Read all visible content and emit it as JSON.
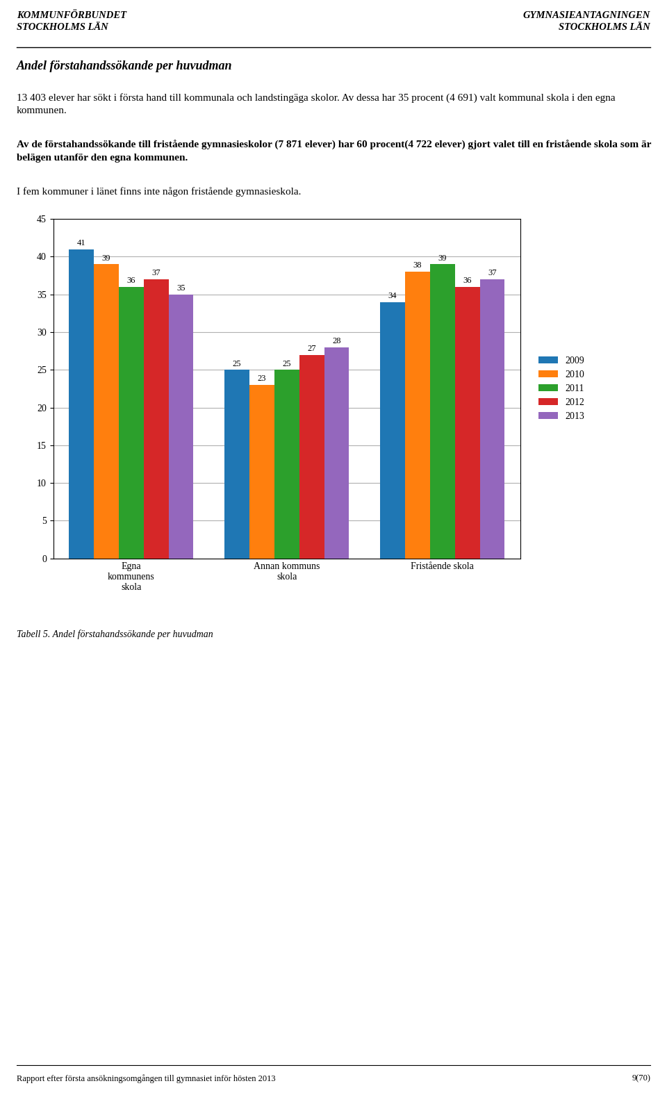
{
  "chart_data": {
    "type": "bar",
    "title": "Andel förstahandssökande per huvudman",
    "annotations": [
      "KOMMUNFÖRBUNDET\nSTOCKHOLMS LÄN",
      "GYMNASIEANTAGNINGEN\nSTOCKHOLMS LÄN",
      "13 403 elever har sökt i första hand till kommunala och landstingäga skolor. Av dessa har 35 procent (4 691) valt kommunal skola i den egna kommunen.",
      "Av de förstahandssökande till fristående gymnasieskolor (7 871 elever) har 60 procent(4 722 elever) gjort valet till en fristående skola som är belägen utanför den egna kommunen.",
      "I fem kommuner i länet finns inte någon fristående gymnasieskola.",
      "Tabell 5. Andel förstahandssökande per huvudman",
      "Rapport efter första ansökningsomgången till gymnasiet inför hösten 2013",
      "9(70)"
    ],
    "categories": [
      "Egna\nkommunens\nskola",
      "Annan kommuns\nskola",
      "Fristående skola"
    ],
    "series": [
      {
        "name": "2009",
        "values": [
          41,
          25,
          34
        ]
      },
      {
        "name": "2010",
        "values": [
          39,
          23,
          38
        ]
      },
      {
        "name": "2011",
        "values": [
          36,
          25,
          39
        ]
      },
      {
        "name": "2012",
        "values": [
          37,
          27,
          36
        ]
      },
      {
        "name": "2013",
        "values": [
          35,
          28,
          37
        ]
      }
    ],
    "ylim": [
      0,
      45
    ],
    "yticks": [
      0,
      5,
      10,
      15,
      20,
      25,
      30,
      35,
      40,
      45
    ],
    "grid": true,
    "legend": "center left",
    "data_labels": true
  }
}
